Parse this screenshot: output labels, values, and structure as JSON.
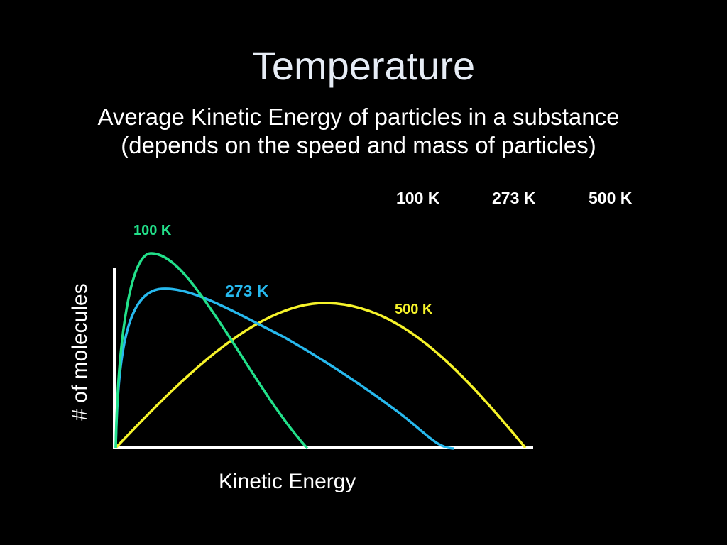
{
  "slide": {
    "title": "Temperature",
    "subtitle_line1": "Average Kinetic Energy of particles in a substance",
    "subtitle_line2": "(depends on the speed and mass of particles)"
  },
  "header_temperatures": [
    "100 K",
    "273 K",
    "500 K"
  ],
  "diagram": {
    "ylabel": "# of molecules",
    "xlabel": "Kinetic Energy",
    "curves": [
      {
        "label": "100 K",
        "color": "#22e08a"
      },
      {
        "label": "273 K",
        "color": "#27b9ee"
      },
      {
        "label": "500 K",
        "color": "#f6f32a"
      }
    ],
    "axis_color": "#ffffff"
  }
}
